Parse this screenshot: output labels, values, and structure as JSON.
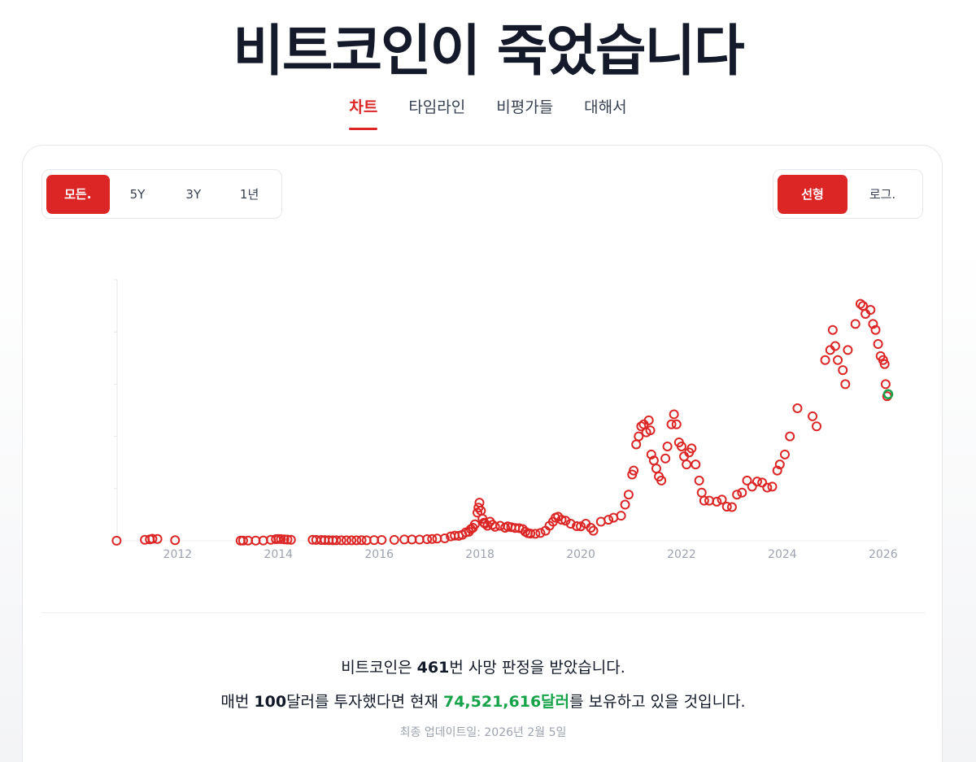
{
  "site": {
    "title": "비트코인이 죽었습니다",
    "nav": [
      {
        "label": "차트",
        "active": true
      },
      {
        "label": "타임라인",
        "active": false
      },
      {
        "label": "비평가들",
        "active": false
      },
      {
        "label": "대해서",
        "active": false
      }
    ]
  },
  "controls": {
    "ranges": [
      {
        "label": "모든.",
        "active": true
      },
      {
        "label": "5Y",
        "active": false
      },
      {
        "label": "3Y",
        "active": false
      },
      {
        "label": "1년",
        "active": false
      }
    ],
    "scales": [
      {
        "label": "선형",
        "active": true
      },
      {
        "label": "로그.",
        "active": false
      }
    ]
  },
  "colors": {
    "accent": "#dc2626",
    "point": "#dc2626",
    "latest_point": "#16a34a",
    "positive": "#16a34a"
  },
  "chart_data": {
    "type": "scatter",
    "x_axis": {
      "type": "time",
      "ticks": [
        "2012",
        "2014",
        "2016",
        "2018",
        "2020",
        "2022",
        "2024",
        "2026"
      ],
      "range": [
        2010.8,
        2026.1
      ]
    },
    "y_axis": {
      "range": [
        0,
        130000
      ],
      "scale": "linear",
      "tick_labels_shown": false
    },
    "grid": false,
    "marker": "hollow-circle",
    "series": [
      {
        "points": [
          [
            2010.79,
            50
          ],
          [
            2011.35,
            500
          ],
          [
            2011.45,
            700
          ],
          [
            2011.5,
            1000
          ],
          [
            2011.6,
            900
          ],
          [
            2011.95,
            300
          ],
          [
            2013.25,
            100
          ],
          [
            2013.3,
            100
          ],
          [
            2013.4,
            120
          ],
          [
            2013.55,
            100
          ],
          [
            2013.7,
            130
          ],
          [
            2013.85,
            500
          ],
          [
            2013.95,
            800
          ],
          [
            2014.0,
            900
          ],
          [
            2014.05,
            850
          ],
          [
            2014.12,
            700
          ],
          [
            2014.18,
            620
          ],
          [
            2014.25,
            500
          ],
          [
            2014.68,
            500
          ],
          [
            2014.75,
            450
          ],
          [
            2014.85,
            400
          ],
          [
            2014.92,
            370
          ],
          [
            2015.0,
            300
          ],
          [
            2015.08,
            260
          ],
          [
            2015.15,
            250
          ],
          [
            2015.25,
            240
          ],
          [
            2015.35,
            240
          ],
          [
            2015.45,
            230
          ],
          [
            2015.55,
            260
          ],
          [
            2015.65,
            280
          ],
          [
            2015.75,
            270
          ],
          [
            2015.9,
            350
          ],
          [
            2016.05,
            430
          ],
          [
            2016.3,
            450
          ],
          [
            2016.5,
            640
          ],
          [
            2016.65,
            650
          ],
          [
            2016.8,
            600
          ],
          [
            2016.95,
            800
          ],
          [
            2017.05,
            900
          ],
          [
            2017.15,
            1100
          ],
          [
            2017.3,
            1200
          ],
          [
            2017.42,
            2200
          ],
          [
            2017.5,
            2600
          ],
          [
            2017.58,
            2500
          ],
          [
            2017.65,
            3000
          ],
          [
            2017.72,
            4200
          ],
          [
            2017.78,
            4500
          ],
          [
            2017.82,
            5800
          ],
          [
            2017.86,
            6500
          ],
          [
            2017.9,
            8200
          ],
          [
            2017.95,
            14000
          ],
          [
            2017.97,
            16500
          ],
          [
            2017.99,
            19000
          ],
          [
            2018.02,
            15000
          ],
          [
            2018.05,
            11000
          ],
          [
            2018.08,
            9000
          ],
          [
            2018.1,
            8500
          ],
          [
            2018.15,
            7500
          ],
          [
            2018.2,
            9500
          ],
          [
            2018.25,
            8000
          ],
          [
            2018.3,
            7000
          ],
          [
            2018.4,
            7500
          ],
          [
            2018.5,
            6500
          ],
          [
            2018.55,
            7200
          ],
          [
            2018.62,
            6800
          ],
          [
            2018.7,
            6400
          ],
          [
            2018.78,
            6300
          ],
          [
            2018.85,
            5800
          ],
          [
            2018.9,
            4500
          ],
          [
            2018.95,
            3800
          ],
          [
            2019.0,
            3600
          ],
          [
            2019.1,
            3500
          ],
          [
            2019.2,
            3900
          ],
          [
            2019.3,
            5000
          ],
          [
            2019.38,
            7500
          ],
          [
            2019.45,
            9500
          ],
          [
            2019.5,
            11500
          ],
          [
            2019.55,
            12000
          ],
          [
            2019.62,
            10500
          ],
          [
            2019.7,
            10000
          ],
          [
            2019.8,
            8500
          ],
          [
            2019.92,
            7300
          ],
          [
            2020.0,
            7200
          ],
          [
            2020.1,
            8500
          ],
          [
            2020.2,
            6500
          ],
          [
            2020.25,
            5000
          ],
          [
            2020.4,
            9500
          ],
          [
            2020.55,
            10500
          ],
          [
            2020.65,
            11500
          ],
          [
            2020.8,
            12500
          ],
          [
            2020.88,
            18000
          ],
          [
            2020.95,
            23000
          ],
          [
            2021.02,
            33000
          ],
          [
            2021.05,
            35000
          ],
          [
            2021.1,
            48000
          ],
          [
            2021.15,
            52000
          ],
          [
            2021.2,
            57000
          ],
          [
            2021.25,
            58000
          ],
          [
            2021.3,
            54000
          ],
          [
            2021.35,
            60000
          ],
          [
            2021.38,
            55000
          ],
          [
            2021.4,
            43000
          ],
          [
            2021.45,
            40000
          ],
          [
            2021.5,
            36000
          ],
          [
            2021.55,
            32000
          ],
          [
            2021.6,
            30000
          ],
          [
            2021.68,
            41000
          ],
          [
            2021.72,
            47000
          ],
          [
            2021.8,
            58000
          ],
          [
            2021.85,
            63000
          ],
          [
            2021.9,
            58000
          ],
          [
            2021.95,
            49000
          ],
          [
            2022.0,
            47000
          ],
          [
            2022.05,
            42000
          ],
          [
            2022.1,
            38000
          ],
          [
            2022.15,
            44000
          ],
          [
            2022.2,
            46000
          ],
          [
            2022.28,
            38000
          ],
          [
            2022.35,
            30000
          ],
          [
            2022.4,
            24000
          ],
          [
            2022.45,
            20000
          ],
          [
            2022.55,
            20000
          ],
          [
            2022.7,
            19500
          ],
          [
            2022.8,
            20500
          ],
          [
            2022.9,
            17000
          ],
          [
            2023.0,
            16800
          ],
          [
            2023.1,
            23000
          ],
          [
            2023.2,
            24000
          ],
          [
            2023.3,
            30000
          ],
          [
            2023.4,
            27000
          ],
          [
            2023.5,
            29500
          ],
          [
            2023.6,
            29000
          ],
          [
            2023.7,
            26500
          ],
          [
            2023.8,
            27000
          ],
          [
            2023.9,
            35000
          ],
          [
            2023.95,
            38000
          ],
          [
            2024.05,
            43000
          ],
          [
            2024.15,
            52000
          ],
          [
            2024.3,
            66000
          ],
          [
            2024.6,
            62000
          ],
          [
            2024.68,
            57000
          ],
          [
            2024.85,
            90000
          ],
          [
            2024.95,
            95000
          ],
          [
            2025.0,
            105000
          ],
          [
            2025.05,
            97000
          ],
          [
            2025.1,
            90000
          ],
          [
            2025.2,
            85000
          ],
          [
            2025.25,
            78000
          ],
          [
            2025.3,
            95000
          ],
          [
            2025.45,
            108000
          ],
          [
            2025.55,
            118000
          ],
          [
            2025.6,
            117000
          ],
          [
            2025.65,
            113000
          ],
          [
            2025.75,
            115000
          ],
          [
            2025.8,
            108000
          ],
          [
            2025.85,
            105000
          ],
          [
            2025.9,
            98000
          ],
          [
            2025.95,
            92000
          ],
          [
            2026.0,
            90000
          ],
          [
            2026.03,
            88000
          ],
          [
            2026.05,
            78000
          ],
          [
            2026.08,
            72000
          ]
        ]
      }
    ],
    "latest_point": [
      2026.1,
      73000
    ]
  },
  "summary": {
    "line1_prefix": "비트코인은 ",
    "death_count": "461",
    "line1_suffix": "번 사망 판정을 받았습니다.",
    "line2_prefix": "매번 ",
    "investment": "100",
    "line2_middle": "달러를 투자했다면 현재 ",
    "current_value": "74,521,616달러",
    "line2_suffix": "를 보유하고 있을 것입니다.",
    "updated": "최종 업데이트일: 2026년 2월 5일"
  }
}
